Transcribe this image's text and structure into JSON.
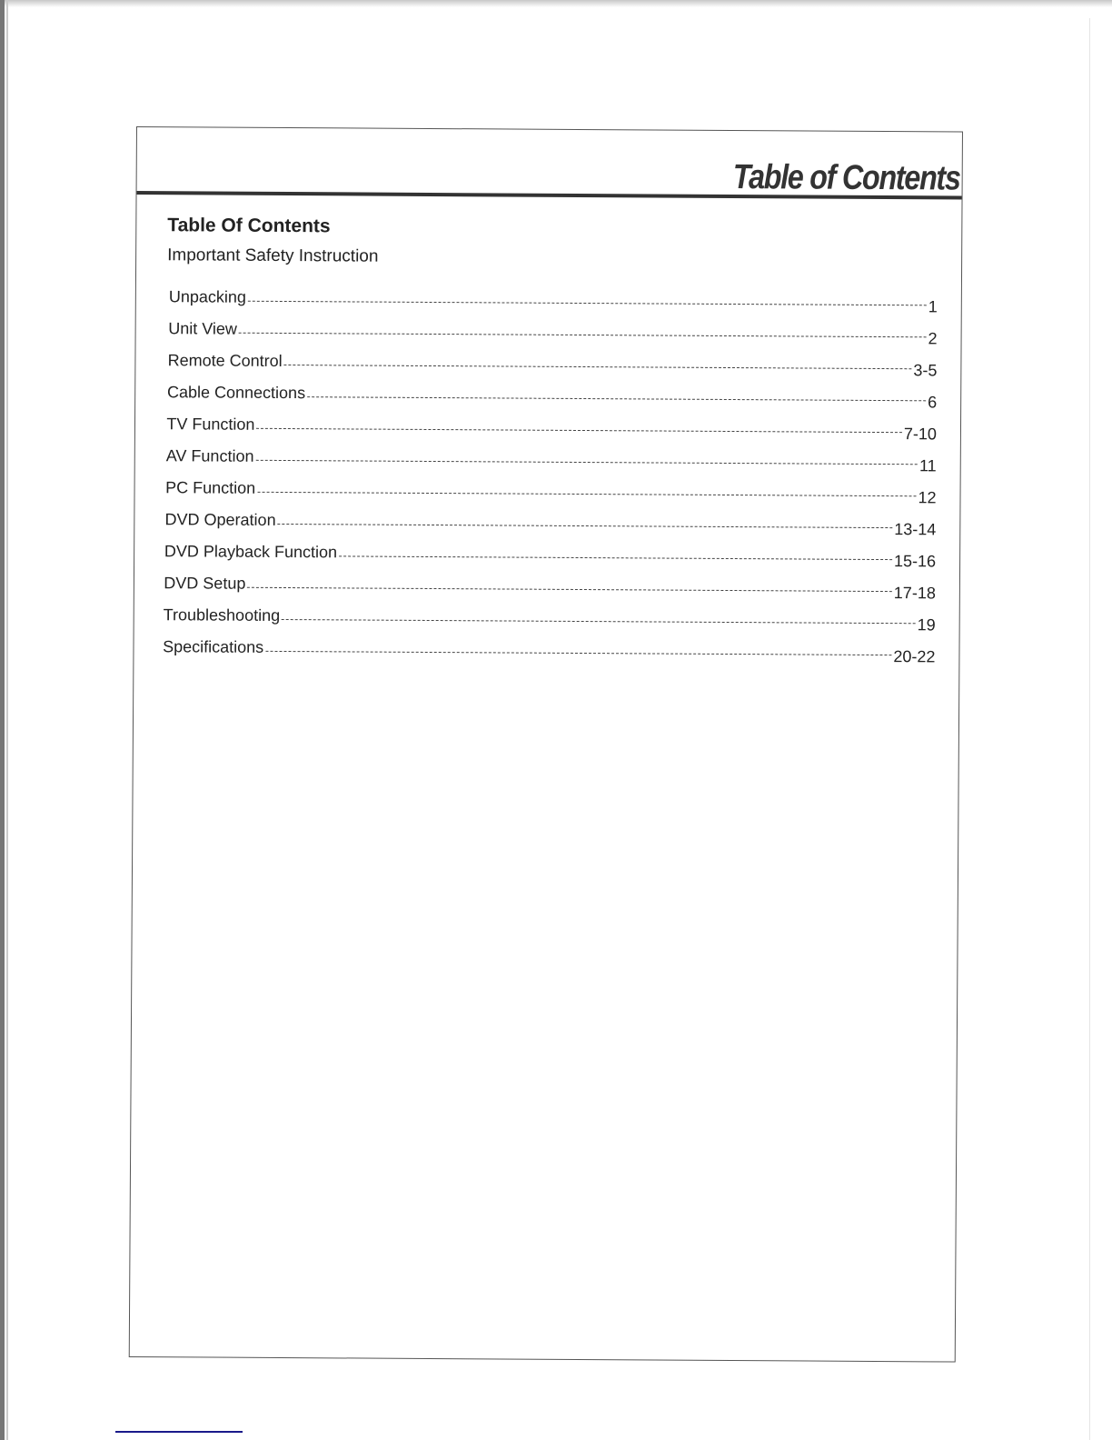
{
  "header": {
    "title": "Table of Contents"
  },
  "toc": {
    "heading": "Table Of Contents",
    "intro": "Important Safety Instruction",
    "entries": [
      {
        "label": "Unpacking",
        "page": "1"
      },
      {
        "label": "Unit View",
        "page": "2"
      },
      {
        "label": "Remote Control",
        "page": "3-5"
      },
      {
        "label": "Cable Connections",
        "page": "6"
      },
      {
        "label": "TV Function",
        "page": "7-10"
      },
      {
        "label": "AV Function",
        "page": "11"
      },
      {
        "label": "PC Function",
        "page": "12"
      },
      {
        "label": "DVD Operation",
        "page": "13-14"
      },
      {
        "label": "DVD Playback Function",
        "page": "15-16"
      },
      {
        "label": "DVD Setup",
        "page": "17-18"
      },
      {
        "label": "Troubleshooting",
        "page": "19"
      },
      {
        "label": "Specifications",
        "page": "20-22"
      }
    ]
  }
}
